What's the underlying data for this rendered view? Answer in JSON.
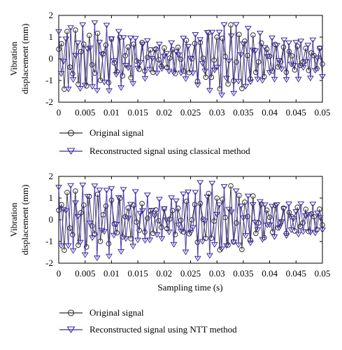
{
  "colors": {
    "original": "#303030",
    "reconstructed": "#3b2a9e",
    "axis": "#000000"
  },
  "chart_data": [
    {
      "type": "line",
      "x_range": [
        0,
        0.05
      ],
      "ylim": [
        -2,
        2
      ],
      "xlabel": "",
      "ylabel_lines": [
        "Vibration",
        "displacement (mm)"
      ],
      "x_ticks": [
        "0",
        "0.005",
        "0.01",
        "0.015",
        "0.02",
        "0.025",
        "0.03",
        "0.035",
        "0.04",
        "0.045",
        "0.05"
      ],
      "y_ticks": [
        "2",
        "1",
        "0",
        "-1",
        "-2"
      ],
      "grid": false,
      "legend_position": "below",
      "series": [
        {
          "name": "Original signal",
          "marker": "circle",
          "envelope": [
            [
              0,
              1.5
            ],
            [
              0.01,
              1.1
            ],
            [
              0.02,
              0.5
            ],
            [
              0.033,
              1.6
            ],
            [
              0.04,
              0.7
            ],
            [
              0.05,
              0.5
            ]
          ]
        },
        {
          "name": "Reconstructed signal using classical method",
          "marker": "triangle-down",
          "envelope": [
            [
              0,
              1.4
            ],
            [
              0.008,
              1.7
            ],
            [
              0.02,
              0.6
            ],
            [
              0.032,
              1.8
            ],
            [
              0.04,
              1.0
            ],
            [
              0.05,
              0.9
            ]
          ]
        }
      ]
    },
    {
      "type": "line",
      "x_range": [
        0,
        0.05
      ],
      "ylim": [
        -2,
        2
      ],
      "xlabel": "Sampling time (s)",
      "ylabel_lines": [
        "Vibration",
        "displacement (mm)"
      ],
      "x_ticks": [
        "0",
        "0.005",
        "0.01",
        "0.015",
        "0.02",
        "0.025",
        "0.03",
        "0.035",
        "0.04",
        "0.045",
        "0.05"
      ],
      "y_ticks": [
        "2",
        "1",
        "0",
        "-1",
        "-2"
      ],
      "grid": false,
      "legend_position": "below",
      "series": [
        {
          "name": "Original signal",
          "marker": "circle",
          "envelope": [
            [
              0,
              1.5
            ],
            [
              0.01,
              1.1
            ],
            [
              0.02,
              0.5
            ],
            [
              0.033,
              1.6
            ],
            [
              0.04,
              0.7
            ],
            [
              0.05,
              0.5
            ]
          ]
        },
        {
          "name": "Reconstructed signal using NTT method",
          "marker": "triangle-down",
          "envelope": [
            [
              0,
              1.5
            ],
            [
              0.008,
              1.8
            ],
            [
              0.02,
              0.9
            ],
            [
              0.027,
              1.9
            ],
            [
              0.04,
              0.8
            ],
            [
              0.05,
              0.7
            ]
          ]
        }
      ]
    }
  ]
}
